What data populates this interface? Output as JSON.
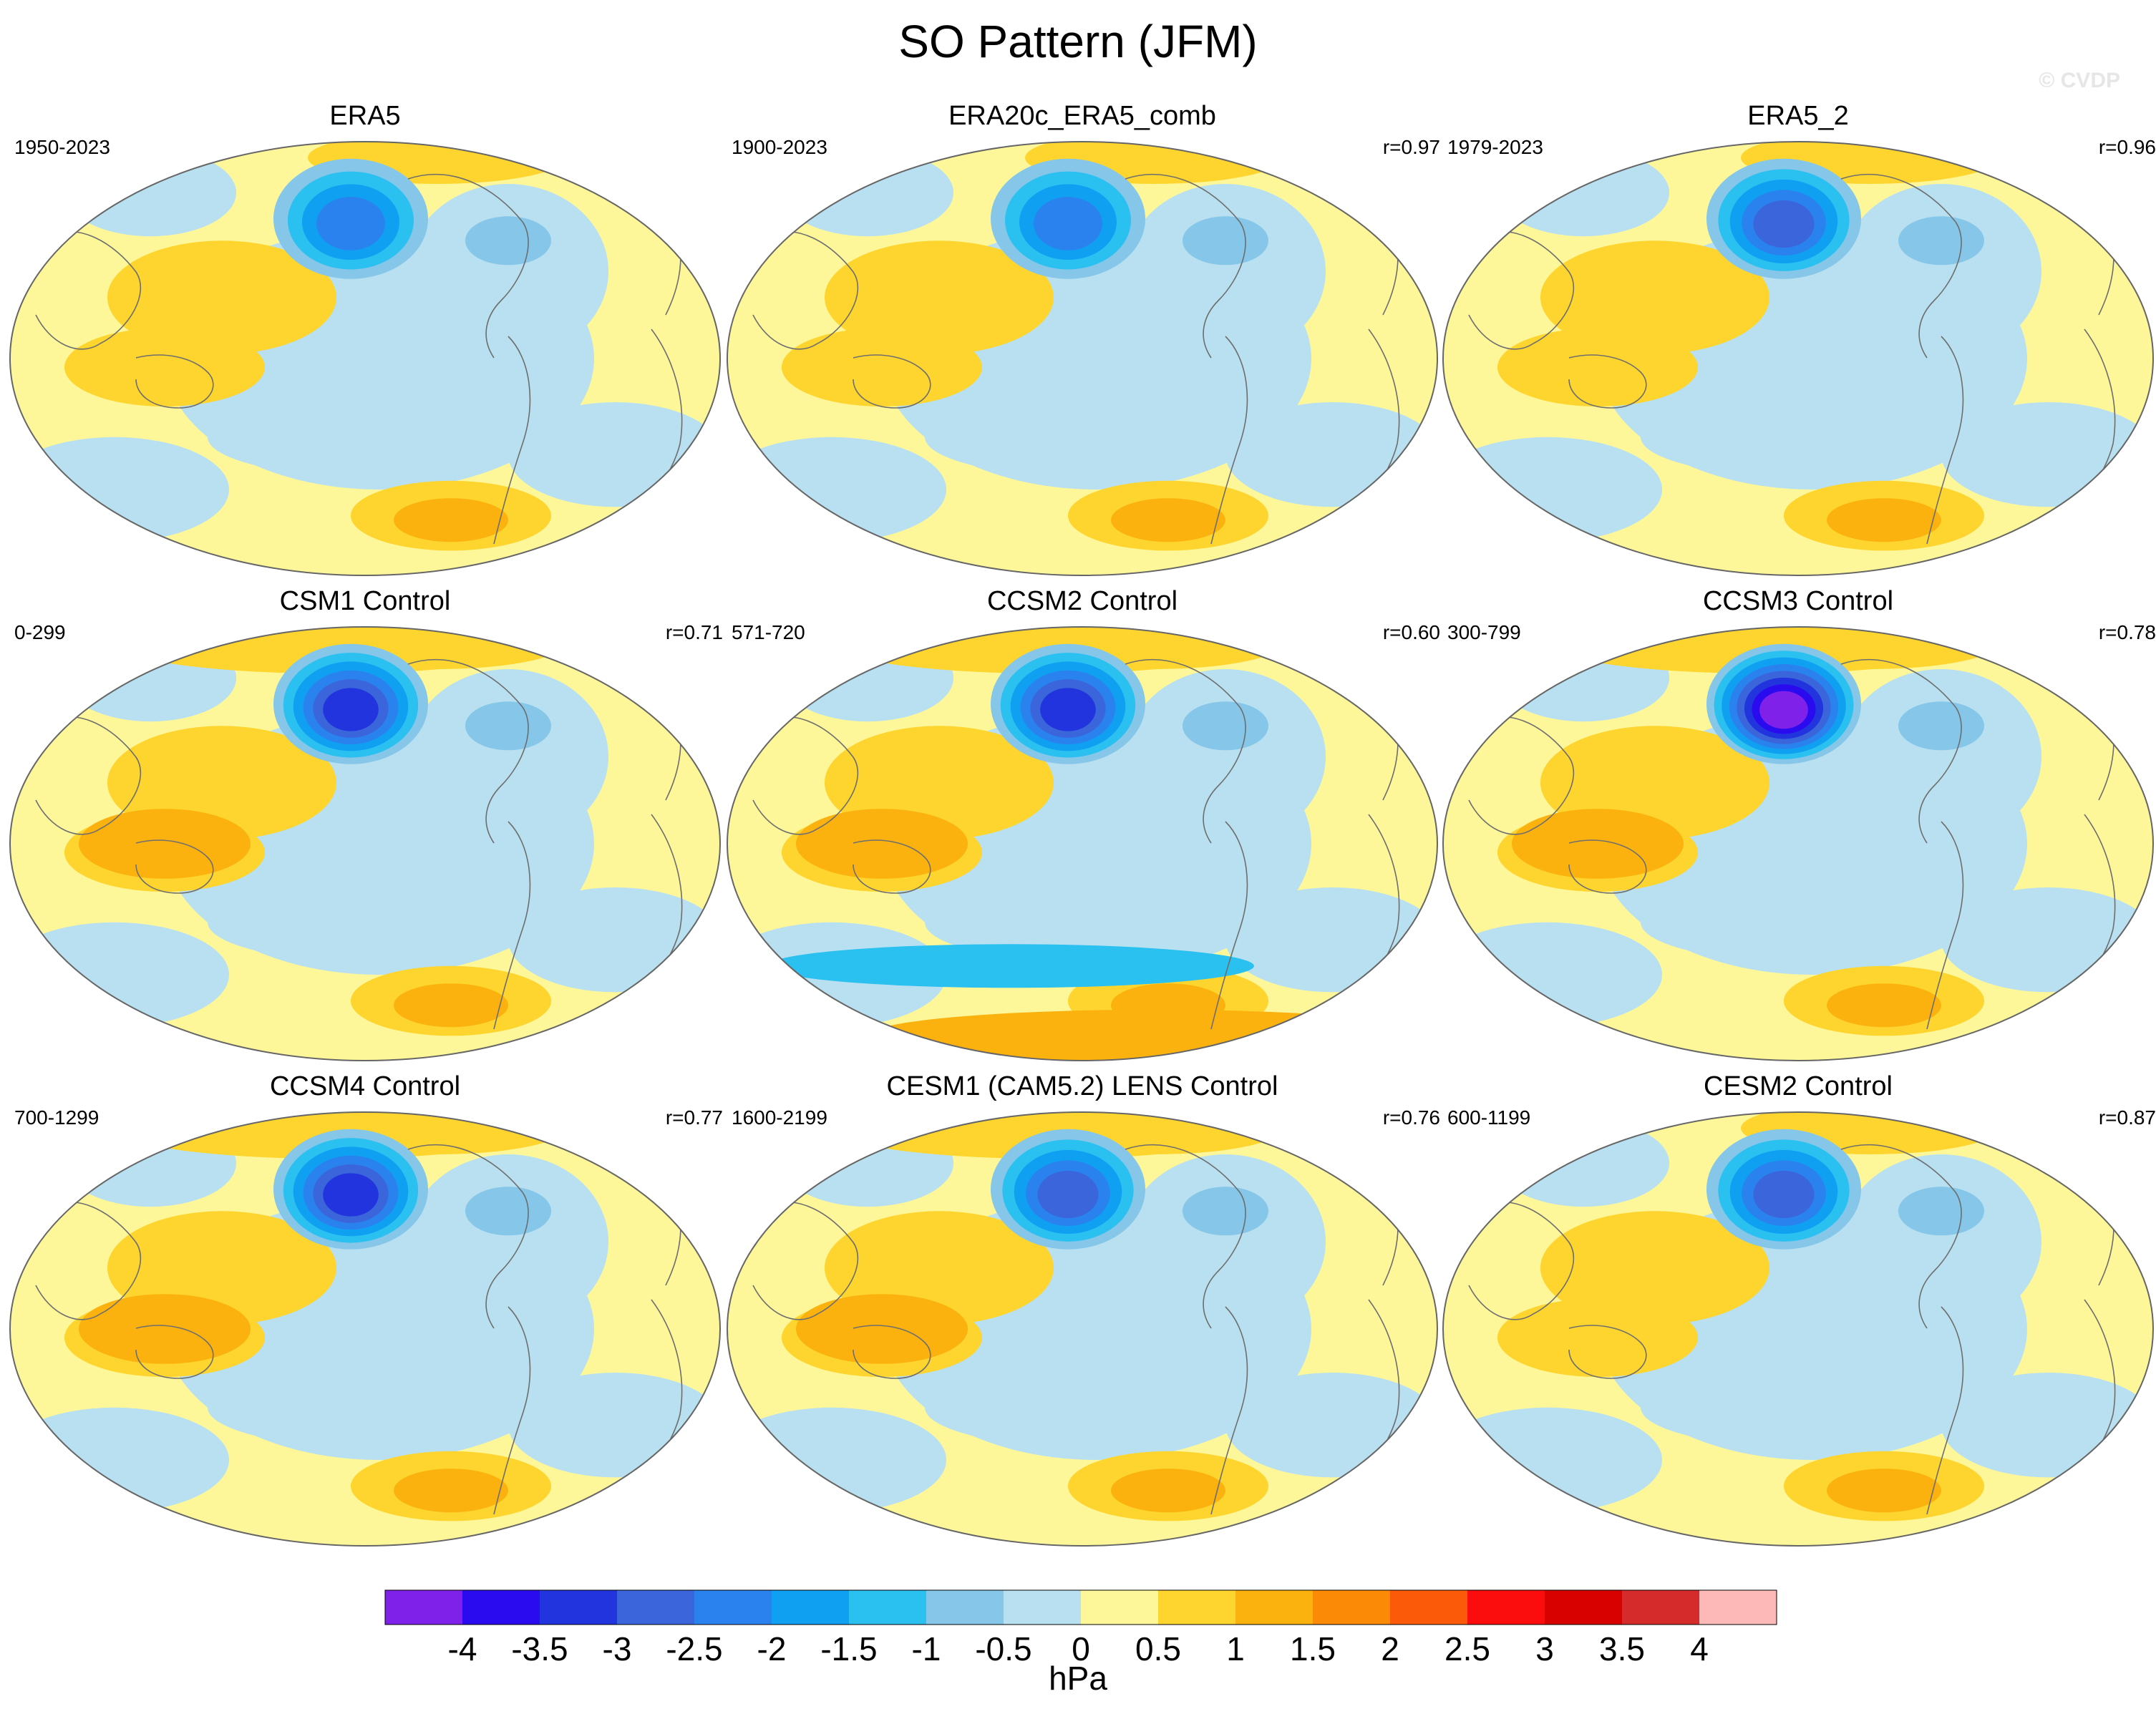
{
  "title": "SO Pattern (JFM)",
  "watermark": "© CVDP",
  "colors": {
    "land_outline": "#6e6e6e",
    "map_border": "#666666",
    "background": "#ffffff"
  },
  "chart_data": {
    "type": "heatmap",
    "projection": "Robinson (Pacific-centered)",
    "variable": "sea level pressure pattern",
    "units": "hPa",
    "colorbar": {
      "levels": [
        "-4",
        "-3.5",
        "-3",
        "-2.5",
        "-2",
        "-1.5",
        "-1",
        "-0.5",
        "0",
        "0.5",
        "1",
        "1.5",
        "2",
        "2.5",
        "3",
        "3.5",
        "4"
      ],
      "colors": [
        "#7f21e8",
        "#2a0aef",
        "#2234dd",
        "#3a65db",
        "#2a82ef",
        "#10a0f2",
        "#2ac0f0",
        "#85c6e9",
        "#b8e0f0",
        "#fdf79a",
        "#fdd52e",
        "#fbb20f",
        "#fb8a07",
        "#fb5a09",
        "#fc0d0d",
        "#d90000",
        "#d52b2b",
        "#fdb8b8"
      ],
      "unit_label": "hPa"
    },
    "panels": [
      {
        "title": "ERA5",
        "period": "1950-2023",
        "r": "",
        "min_value": -2.0,
        "pattern": "a"
      },
      {
        "title": "ERA20c_ERA5_comb",
        "period": "1900-2023",
        "r": "r=0.97",
        "min_value": -2.0,
        "pattern": "a"
      },
      {
        "title": "ERA5_2",
        "period": "1979-2023",
        "r": "r=0.96",
        "min_value": -2.5,
        "pattern": "a"
      },
      {
        "title": "CSM1 Control",
        "period": "0-299",
        "r": "r=0.71",
        "min_value": -3.0,
        "pattern": "b"
      },
      {
        "title": "CCSM2 Control",
        "period": "571-720",
        "r": "r=0.60",
        "min_value": -3.0,
        "pattern": "c"
      },
      {
        "title": "CCSM3 Control",
        "period": "300-799",
        "r": "r=0.78",
        "min_value": -4.0,
        "pattern": "b"
      },
      {
        "title": "CCSM4 Control",
        "period": "700-1299",
        "r": "r=0.77",
        "min_value": -3.0,
        "pattern": "d"
      },
      {
        "title": "CESM1 (CAM5.2) LENS Control",
        "period": "1600-2199",
        "r": "r=0.76",
        "min_value": -2.5,
        "pattern": "d"
      },
      {
        "title": "CESM2 Control",
        "period": "600-1199",
        "r": "r=0.87",
        "min_value": -2.5,
        "pattern": "a"
      }
    ]
  }
}
